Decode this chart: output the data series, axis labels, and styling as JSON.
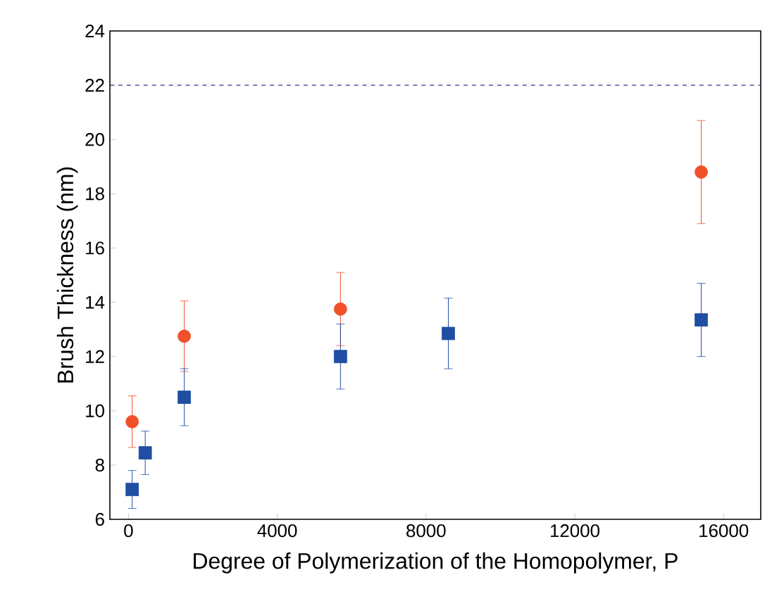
{
  "chart_data": {
    "type": "scatter",
    "xlabel": "Degree of Polymerization of the Homopolymer, P",
    "ylabel": "Brush Thickness (nm)",
    "xlim": [
      -500,
      17000
    ],
    "ylim": [
      6,
      24
    ],
    "xticks": [
      0,
      4000,
      8000,
      12000,
      16000
    ],
    "yticks": [
      6,
      8,
      10,
      12,
      14,
      16,
      18,
      20,
      22,
      24
    ],
    "grid": false,
    "series": [
      {
        "color": "#f0502a",
        "marker": "circle",
        "x": [
          100,
          1500,
          5700,
          15400
        ],
        "values": [
          9.6,
          12.75,
          13.75,
          18.8
        ],
        "errors": [
          0.95,
          1.3,
          1.35,
          1.9
        ]
      },
      {
        "color": "#1f4ea3",
        "marker": "square",
        "x": [
          100,
          450,
          1500,
          5700,
          8600,
          15400
        ],
        "values": [
          7.1,
          8.45,
          10.5,
          12.0,
          12.85,
          13.35
        ],
        "errors": [
          0.7,
          0.8,
          1.05,
          1.2,
          1.3,
          1.35
        ]
      }
    ],
    "ref_lines": [
      {
        "axis": "y",
        "value": 22,
        "color": "#2a3a8a",
        "line_style": "dashed"
      }
    ]
  }
}
